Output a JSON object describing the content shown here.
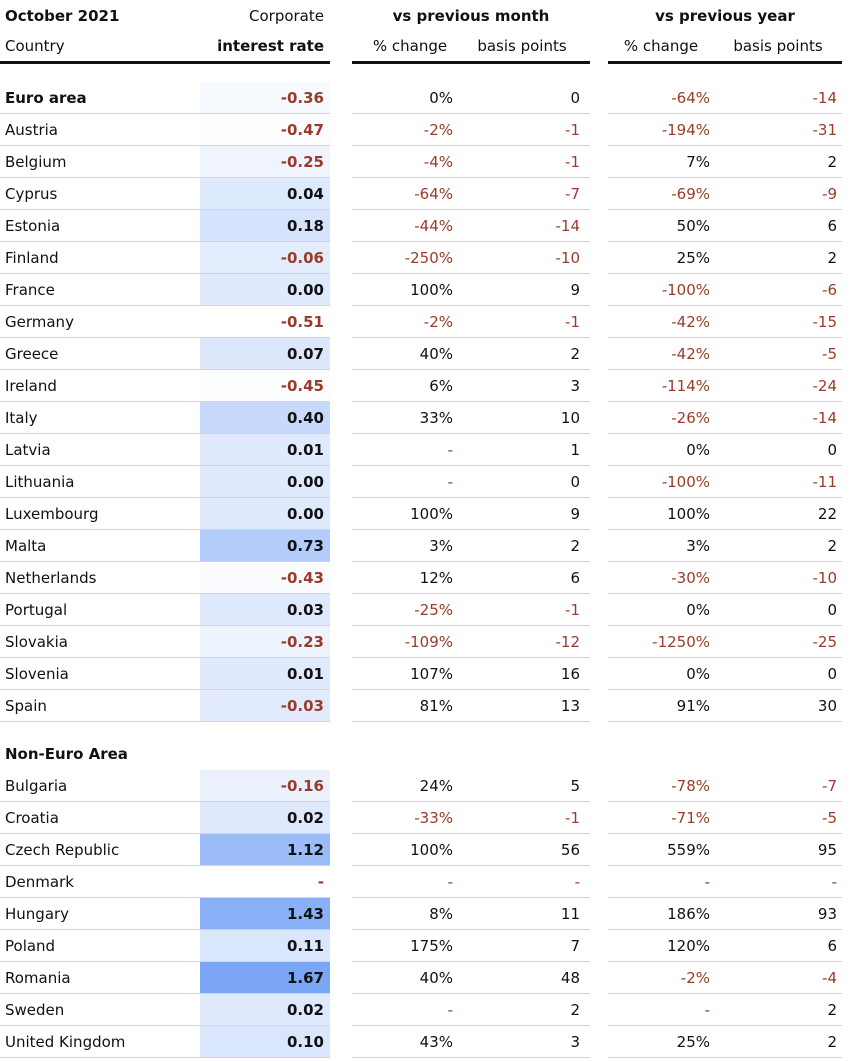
{
  "header": {
    "row1": [
      "October 2021",
      "Corporate",
      "vs previous month",
      "vs previous year"
    ],
    "row2": [
      "Country",
      "interest rate",
      "% change",
      "basis points",
      "% change",
      "basis points"
    ]
  },
  "sections": [
    {
      "heading": [
        "Euro area",
        "-0.36",
        "0%",
        "0",
        "-64%",
        "-14"
      ],
      "rows": [
        [
          "Austria",
          "-0.47",
          "-2%",
          "-1",
          "-194%",
          "-31"
        ],
        [
          "Belgium",
          "-0.25",
          "-4%",
          "-1",
          "7%",
          "2"
        ],
        [
          "Cyprus",
          "0.04",
          "-64%",
          "-7",
          "-69%",
          "-9"
        ],
        [
          "Estonia",
          "0.18",
          "-44%",
          "-14",
          "50%",
          "6"
        ],
        [
          "Finland",
          "-0.06",
          "-250%",
          "-10",
          "25%",
          "2"
        ],
        [
          "France",
          "0.00",
          "100%",
          "9",
          "-100%",
          "-6"
        ],
        [
          "Germany",
          "-0.51",
          "-2%",
          "-1",
          "-42%",
          "-15"
        ],
        [
          "Greece",
          "0.07",
          "40%",
          "2",
          "-42%",
          "-5"
        ],
        [
          "Ireland",
          "-0.45",
          "6%",
          "3",
          "-114%",
          "-24"
        ],
        [
          "Italy",
          "0.40",
          "33%",
          "10",
          "-26%",
          "-14"
        ],
        [
          "Latvia",
          "0.01",
          "-",
          "1",
          "0%",
          "0"
        ],
        [
          "Lithuania",
          "0.00",
          "-",
          "0",
          "-100%",
          "-11"
        ],
        [
          "Luxembourg",
          "0.00",
          "100%",
          "9",
          "100%",
          "22"
        ],
        [
          "Malta",
          "0.73",
          "3%",
          "2",
          "3%",
          "2"
        ],
        [
          "Netherlands",
          "-0.43",
          "12%",
          "6",
          "-30%",
          "-10"
        ],
        [
          "Portugal",
          "0.03",
          "-25%",
          "-1",
          "0%",
          "0"
        ],
        [
          "Slovakia",
          "-0.23",
          "-109%",
          "-12",
          "-1250%",
          "-25"
        ],
        [
          "Slovenia",
          "0.01",
          "107%",
          "16",
          "0%",
          "0"
        ],
        [
          "Spain",
          "-0.03",
          "81%",
          "13",
          "91%",
          "30"
        ]
      ]
    },
    {
      "heading": "Non-Euro Area",
      "rows": [
        [
          "Bulgaria",
          "-0.16",
          "24%",
          "5",
          "-78%",
          "-7"
        ],
        [
          "Croatia",
          "0.02",
          "-33%",
          "-1",
          "-71%",
          "-5"
        ],
        [
          "Czech Republic",
          "1.12",
          "100%",
          "56",
          "559%",
          "95"
        ],
        [
          "Denmark",
          "-",
          "-",
          "-",
          "-",
          "-"
        ],
        [
          "Hungary",
          "1.43",
          "8%",
          "11",
          "186%",
          "93"
        ],
        [
          "Poland",
          "0.11",
          "175%",
          "7",
          "120%",
          "6"
        ],
        [
          "Romania",
          "1.67",
          "40%",
          "48",
          "-2%",
          "-4"
        ],
        [
          "Sweden",
          "0.02",
          "-",
          "2",
          "-",
          "2"
        ],
        [
          "United Kingdom",
          "0.10",
          "43%",
          "3",
          "25%",
          "2"
        ]
      ]
    }
  ]
}
